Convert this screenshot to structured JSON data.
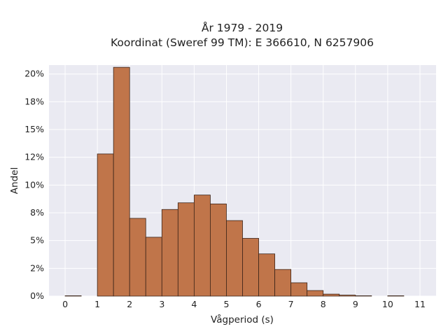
{
  "chart_data": {
    "type": "bar",
    "title_lines": [
      "År 1979 - 2019",
      "Koordinat (Sweref 99 TM): E 366610, N 6257906"
    ],
    "xlabel": "Vågperiod (s)",
    "ylabel": "Andel",
    "xlim": [
      -0.5,
      11.5
    ],
    "ylim": [
      0,
      0.208
    ],
    "x_ticks": [
      0,
      1,
      2,
      3,
      4,
      5,
      6,
      7,
      8,
      9,
      10,
      11
    ],
    "y_ticks": [
      0,
      0.025,
      0.05,
      0.075,
      0.1,
      0.125,
      0.15,
      0.175,
      0.2
    ],
    "y_tick_labels": [
      "0%",
      "2%",
      "5%",
      "8%",
      "10%",
      "12%",
      "15%",
      "18%",
      "20%"
    ],
    "bin_width": 0.5,
    "bins": [
      {
        "x0": 0.0,
        "value": 0.0003
      },
      {
        "x0": 0.5,
        "value": 0.0
      },
      {
        "x0": 1.0,
        "value": 0.128
      },
      {
        "x0": 1.5,
        "value": 0.206
      },
      {
        "x0": 2.0,
        "value": 0.07
      },
      {
        "x0": 2.5,
        "value": 0.053
      },
      {
        "x0": 3.0,
        "value": 0.078
      },
      {
        "x0": 3.5,
        "value": 0.084
      },
      {
        "x0": 4.0,
        "value": 0.091
      },
      {
        "x0": 4.5,
        "value": 0.083
      },
      {
        "x0": 5.0,
        "value": 0.068
      },
      {
        "x0": 5.5,
        "value": 0.052
      },
      {
        "x0": 6.0,
        "value": 0.038
      },
      {
        "x0": 6.5,
        "value": 0.024
      },
      {
        "x0": 7.0,
        "value": 0.012
      },
      {
        "x0": 7.5,
        "value": 0.005
      },
      {
        "x0": 8.0,
        "value": 0.0018
      },
      {
        "x0": 8.5,
        "value": 0.0009
      },
      {
        "x0": 9.0,
        "value": 0.0003
      },
      {
        "x0": 9.5,
        "value": 0.0
      },
      {
        "x0": 10.0,
        "value": 0.0003
      }
    ],
    "grid": true,
    "colors": {
      "bar_fill": "#c0754a",
      "bar_edge": "#3b2418",
      "plot_background": "#eaeaf2",
      "grid": "#ffffff"
    }
  }
}
